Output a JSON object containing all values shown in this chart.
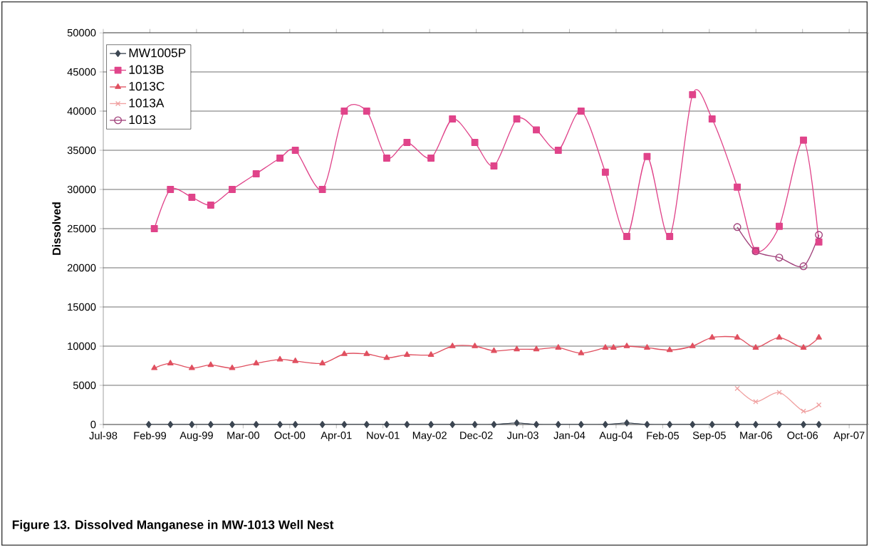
{
  "chart_data": {
    "type": "line",
    "title": "Figure 13.  Dissolved Manganese in MW-1013 Well Nest",
    "ylabel": "Dissolved",
    "xlim": [
      "1998-07-26",
      "2007-07-18"
    ],
    "xticks": [
      {
        "value": "1998-07-26",
        "label": "Jul-98"
      },
      {
        "value": "1999-02-11",
        "label": "Feb-99"
      },
      {
        "value": "1999-08-30",
        "label": "Aug-99"
      },
      {
        "value": "2000-03-17",
        "label": "Mar-00"
      },
      {
        "value": "2000-10-03",
        "label": "Oct-00"
      },
      {
        "value": "2001-04-21",
        "label": "Apr-01"
      },
      {
        "value": "2001-11-07",
        "label": "Nov-01"
      },
      {
        "value": "2002-05-26",
        "label": "May-02"
      },
      {
        "value": "2002-12-12",
        "label": "Dec-02"
      },
      {
        "value": "2003-06-30",
        "label": "Jun-03"
      },
      {
        "value": "2004-01-16",
        "label": "Jan-04"
      },
      {
        "value": "2004-08-03",
        "label": "Aug-04"
      },
      {
        "value": "2005-02-19",
        "label": "Feb-05"
      },
      {
        "value": "2005-09-07",
        "label": "Sep-05"
      },
      {
        "value": "2006-03-26",
        "label": "Mar-06"
      },
      {
        "value": "2006-10-12",
        "label": "Oct-06"
      },
      {
        "value": "2007-04-30",
        "label": "Apr-07"
      }
    ],
    "ylim": [
      0,
      50000
    ],
    "yticks": [
      0,
      5000,
      10000,
      15000,
      20000,
      25000,
      30000,
      35000,
      40000,
      45000,
      50000
    ],
    "grid": "y",
    "legend": "top left",
    "series": [
      {
        "name": "MW1005P",
        "color": "#3c4652",
        "marker": "diamond",
        "x": [
          "1999-02-06",
          "1999-05-10",
          "1999-08-10",
          "1999-10-30",
          "2000-01-30",
          "2000-05-12",
          "2000-08-22",
          "2000-10-27",
          "2001-02-20",
          "2001-05-25",
          "2001-08-29",
          "2001-11-23",
          "2002-02-18",
          "2002-06-01",
          "2002-09-01",
          "2002-12-06",
          "2003-02-26",
          "2003-06-04",
          "2003-08-27",
          "2003-11-29",
          "2004-03-06",
          "2004-06-18",
          "2004-09-18",
          "2004-12-14",
          "2005-03-21",
          "2005-06-27",
          "2005-09-19",
          "2006-01-05",
          "2006-03-25",
          "2006-07-04",
          "2006-10-16",
          "2006-12-21"
        ],
        "values": [
          0,
          0,
          0,
          0,
          0,
          0,
          0,
          0,
          0,
          0,
          0,
          0,
          0,
          0,
          0,
          0,
          0,
          200,
          0,
          0,
          0,
          0,
          200,
          0,
          0,
          0,
          0,
          0,
          0,
          0,
          0,
          0
        ]
      },
      {
        "name": "1013B",
        "color": "#e0448a",
        "marker": "square",
        "x": [
          "1999-03-02",
          "1999-05-10",
          "1999-08-10",
          "1999-10-30",
          "2000-01-30",
          "2000-05-12",
          "2000-08-22",
          "2000-10-27",
          "2001-02-20",
          "2001-05-25",
          "2001-08-29",
          "2001-11-23",
          "2002-02-18",
          "2002-06-01",
          "2002-09-01",
          "2002-12-06",
          "2003-02-26",
          "2003-06-04",
          "2003-08-27",
          "2003-11-29",
          "2004-03-06",
          "2004-06-18",
          "2004-09-18",
          "2004-12-14",
          "2005-03-21",
          "2005-06-27",
          "2005-09-19",
          "2006-01-05",
          "2006-03-25",
          "2006-07-04",
          "2006-10-16",
          "2006-12-21"
        ],
        "values": [
          25000,
          30000,
          29000,
          28000,
          30000,
          32000,
          34000,
          35000,
          30000,
          40000,
          40000,
          34000,
          36000,
          34000,
          39000,
          36000,
          33000,
          39000,
          37600,
          35000,
          40000,
          32200,
          24000,
          34200,
          24000,
          42100,
          39000,
          30300,
          22200,
          25300,
          36300,
          23300
        ]
      },
      {
        "name": "1013C",
        "color": "#e05060",
        "marker": "triangle",
        "x": [
          "1999-03-02",
          "1999-05-10",
          "1999-08-10",
          "1999-10-30",
          "2000-01-30",
          "2000-05-12",
          "2000-08-22",
          "2000-10-27",
          "2001-02-20",
          "2001-05-25",
          "2001-08-29",
          "2001-11-23",
          "2002-02-18",
          "2002-06-01",
          "2002-09-01",
          "2002-12-06",
          "2003-02-26",
          "2003-06-04",
          "2003-08-27",
          "2003-11-29",
          "2004-03-06",
          "2004-06-18",
          "2004-07-23",
          "2004-09-18",
          "2004-12-14",
          "2005-03-21",
          "2005-06-27",
          "2005-09-19",
          "2006-01-05",
          "2006-03-25",
          "2006-07-04",
          "2006-10-16",
          "2006-12-21"
        ],
        "values": [
          7200,
          7800,
          7200,
          7600,
          7200,
          7800,
          8300,
          8100,
          7800,
          9000,
          9000,
          8500,
          8900,
          8900,
          10000,
          10000,
          9400,
          9600,
          9600,
          9800,
          9100,
          9800,
          9800,
          10000,
          9800,
          9500,
          10000,
          11100,
          11100,
          9800,
          11100,
          9800,
          11100
        ]
      },
      {
        "name": "1013A",
        "color": "#f0a0a0",
        "marker": "cross",
        "x": [
          "2006-01-05",
          "2006-03-25",
          "2006-07-04",
          "2006-10-16",
          "2006-12-21"
        ],
        "values": [
          4600,
          2900,
          4100,
          1700,
          2500
        ]
      },
      {
        "name": "1013",
        "color": "#a0407a",
        "marker": "circle",
        "x": [
          "2006-01-05",
          "2006-03-25",
          "2006-07-04",
          "2006-10-16",
          "2006-12-21"
        ],
        "values": [
          25200,
          22100,
          21300,
          20200,
          24200
        ]
      }
    ]
  }
}
